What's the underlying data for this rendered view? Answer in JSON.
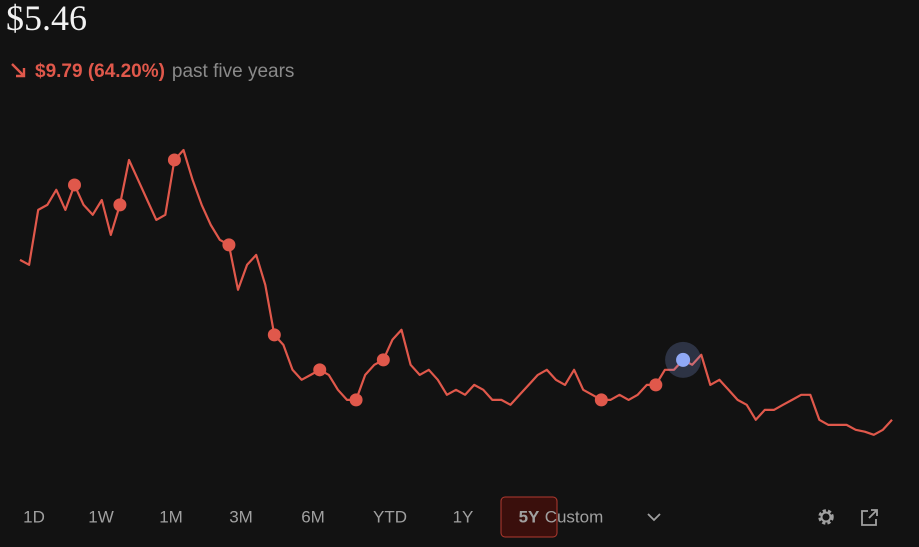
{
  "header": {
    "price": "$5.46",
    "change": "$9.79 (64.20%)",
    "period": "past five years"
  },
  "chart_data": {
    "type": "line",
    "color": "#e0584b",
    "highlight_color": "#8fa8f5",
    "ylim": [
      3,
      24
    ],
    "values": [
      15.25,
      14.95,
      18.31,
      18.62,
      19.54,
      18.31,
      19.84,
      18.62,
      18.01,
      18.92,
      16.78,
      18.62,
      21.37,
      20.15,
      18.92,
      17.7,
      18.01,
      21.37,
      21.98,
      20.15,
      18.62,
      17.39,
      16.48,
      16.17,
      13.42,
      14.95,
      15.56,
      13.72,
      10.66,
      10.05,
      8.52,
      7.91,
      8.21,
      8.52,
      8.21,
      7.3,
      6.68,
      6.68,
      8.21,
      8.83,
      9.13,
      10.36,
      10.97,
      8.83,
      8.21,
      8.52,
      7.91,
      6.99,
      7.3,
      6.99,
      7.6,
      7.3,
      6.68,
      6.68,
      6.38,
      6.99,
      7.6,
      8.21,
      8.52,
      7.91,
      7.6,
      8.52,
      7.3,
      6.99,
      6.68,
      6.68,
      6.99,
      6.68,
      6.99,
      7.6,
      7.6,
      8.52,
      8.52,
      9.13,
      8.83,
      9.44,
      7.6,
      7.91,
      7.3,
      6.68,
      6.38,
      5.46,
      6.07,
      6.07,
      6.38,
      6.68,
      6.99,
      6.99,
      5.46,
      5.15,
      5.15,
      5.15,
      4.85,
      4.73,
      4.54,
      4.85,
      5.46
    ],
    "markers": [
      6,
      11,
      17,
      23,
      28,
      33,
      37,
      40,
      64,
      70
    ],
    "highlight": 73
  },
  "ranges": [
    "1D",
    "1W",
    "1M",
    "3M",
    "6M",
    "YTD",
    "1Y",
    "5Y",
    "Custom"
  ],
  "active_range": "5Y"
}
